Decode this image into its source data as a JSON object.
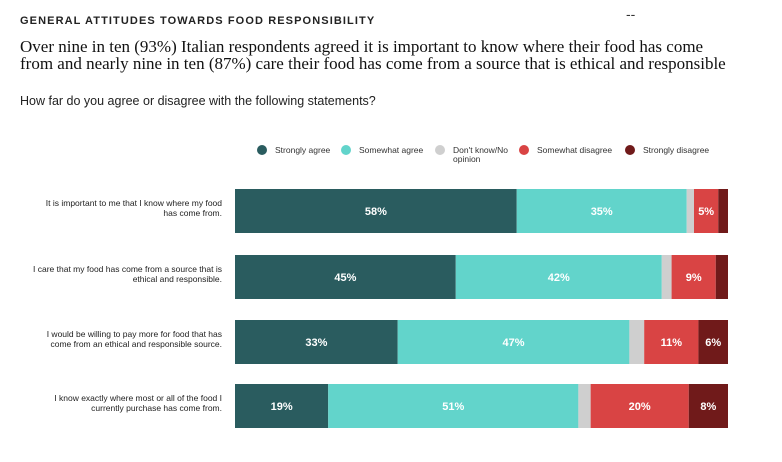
{
  "header": {
    "kicker": "GENERAL ATTITUDES TOWARDS FOOD RESPONSIBILITY",
    "dash": "--",
    "headline_line1": "Over nine in ten (93%) Italian respondents agreed it is important to know where their food has come",
    "headline_line2": "from and nearly nine in ten (87%) care their food has come from a source that is ethical and responsible",
    "question": "How far do you agree or disagree with the following statements?"
  },
  "chart_data": {
    "type": "bar",
    "orientation": "horizontal",
    "stacked": true,
    "normalized_to": 100,
    "grid": false,
    "legend_position": "top",
    "categories": [
      [
        "It is important to me that I know where my food",
        "has come from."
      ],
      [
        "I care that my food has come from a source that is",
        "ethical and responsible."
      ],
      [
        "I would be willing to pay more for food that has",
        "come from an ethical and responsible source."
      ],
      [
        "I know exactly where most or all of the food I",
        "currently purchase has come from."
      ]
    ],
    "series": [
      {
        "name": [
          "Strongly agree"
        ],
        "color": "#2a5c5f",
        "values": [
          58,
          45,
          33,
          19
        ],
        "labels": [
          "58%",
          "45%",
          "33%",
          "19%"
        ]
      },
      {
        "name": [
          "Somewhat agree"
        ],
        "color": "#62d4cb",
        "values": [
          35,
          42,
          47,
          51
        ],
        "labels": [
          "35%",
          "42%",
          "47%",
          "51%"
        ]
      },
      {
        "name": [
          "Don't know/No",
          "opinion"
        ],
        "color": "#cfcfcf",
        "values": [
          1.5,
          2,
          3,
          2.5
        ],
        "labels": [
          "",
          "",
          "",
          ""
        ]
      },
      {
        "name": [
          "Somewhat disagree"
        ],
        "color": "#d94444",
        "values": [
          5,
          9,
          11,
          20
        ],
        "labels": [
          "5%",
          "9%",
          "11%",
          "20%"
        ]
      },
      {
        "name": [
          "Strongly disagree"
        ],
        "color": "#701a1a",
        "values": [
          2,
          2.5,
          6,
          8
        ],
        "labels": [
          "",
          "",
          "6%",
          "8%"
        ]
      }
    ]
  }
}
